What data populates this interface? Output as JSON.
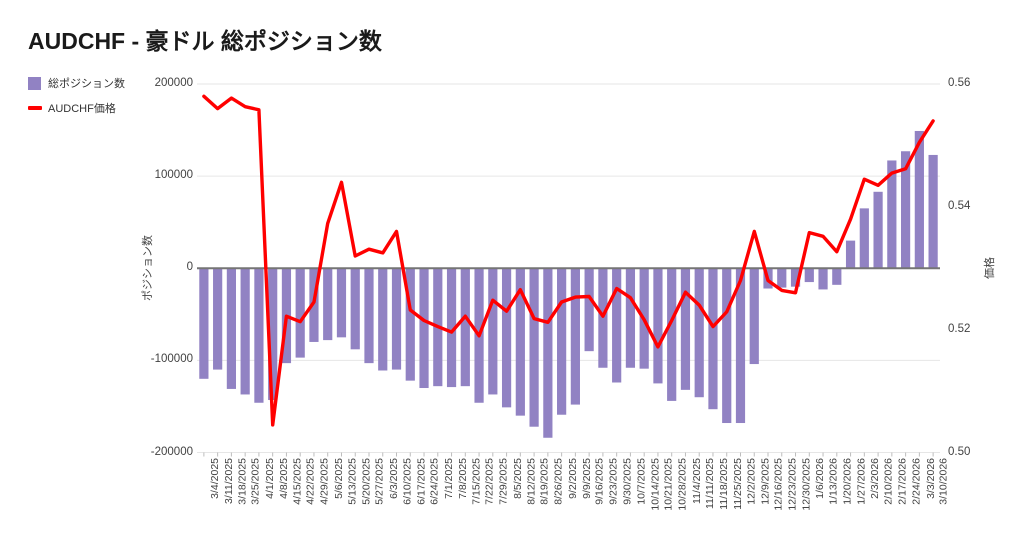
{
  "header": {
    "title": "AUDCHF - 豪ドル 総ポジション数"
  },
  "legend": {
    "items": [
      {
        "label": "総ポジション数",
        "color": "#9182c3",
        "type": "square"
      },
      {
        "label": "AUDCHF価格",
        "color": "#ff0000",
        "type": "line"
      }
    ]
  },
  "axes": {
    "left": {
      "title": "ポジション数",
      "ticks": [
        "200000",
        "100000",
        "0",
        "-100000",
        "-200000"
      ]
    },
    "right": {
      "title": "価格",
      "ticks": [
        "0.56",
        "0.54",
        "0.52",
        "0.50"
      ]
    }
  },
  "colors": {
    "bar": "#9182c3",
    "line": "#ff0000",
    "grid": "#e6e6e6",
    "zero_line": "#757575",
    "tick_stub": "#bdbdbd"
  },
  "chart_data": {
    "type": "bar+line dual-axis combo",
    "title": "AUDCHF - 豪ドル 総ポジション数",
    "categories": [
      "3/4/2025",
      "3/11/2025",
      "3/18/2025",
      "3/25/2025",
      "4/1/2025",
      "4/8/2025",
      "4/15/2025",
      "4/22/2025",
      "4/29/2025",
      "5/6/2025",
      "5/13/2025",
      "5/20/2025",
      "5/27/2025",
      "6/3/2025",
      "6/10/2025",
      "6/17/2025",
      "6/24/2025",
      "7/1/2025",
      "7/8/2025",
      "7/15/2025",
      "7/22/2025",
      "7/29/2025",
      "8/5/2025",
      "8/12/2025",
      "8/19/2025",
      "8/26/2025",
      "9/2/2025",
      "9/9/2025",
      "9/16/2025",
      "9/23/2025",
      "9/30/2025",
      "10/7/2025",
      "10/14/2025",
      "10/21/2025",
      "10/28/2025",
      "11/4/2025",
      "11/11/2025",
      "11/18/2025",
      "11/25/2025",
      "12/2/2025",
      "12/9/2025",
      "12/16/2025",
      "12/23/2025",
      "12/30/2025",
      "1/6/2026",
      "1/13/2026",
      "1/20/2026",
      "1/27/2026",
      "2/3/2026",
      "2/10/2026",
      "2/17/2026",
      "2/24/2026",
      "3/3/2026",
      "3/10/2026"
    ],
    "series": [
      {
        "name": "総ポジション数",
        "type": "bar",
        "axis": "left",
        "color": "#9182c3",
        "values": [
          -120000,
          -110000,
          -131000,
          -137000,
          -146000,
          -143000,
          -103000,
          -97000,
          -80000,
          -78000,
          -75000,
          -88000,
          -103000,
          -111000,
          -110000,
          -122000,
          -130000,
          -128000,
          -129000,
          -128000,
          -146000,
          -137000,
          -151000,
          -160000,
          -172000,
          -184000,
          -159000,
          -148000,
          -90000,
          -108000,
          -124000,
          -108000,
          -109000,
          -125000,
          -144000,
          -132000,
          -140000,
          -153000,
          -168000,
          -168000,
          -104000,
          -22000,
          -21000,
          -20000,
          -15000,
          -23000,
          -18000,
          30000,
          65000,
          83000,
          117000,
          127000,
          149000,
          123000
        ]
      },
      {
        "name": "AUDCHF価格",
        "type": "line",
        "axis": "right",
        "color": "#ff0000",
        "values": [
          0.558,
          0.556,
          0.5577,
          0.5563,
          0.5558,
          0.5045,
          0.5222,
          0.5213,
          0.5245,
          0.5373,
          0.544,
          0.532,
          0.5331,
          0.5325,
          0.536,
          0.5232,
          0.5215,
          0.5205,
          0.5196,
          0.5222,
          0.519,
          0.5248,
          0.523,
          0.5265,
          0.5218,
          0.5212,
          0.5245,
          0.5253,
          0.5254,
          0.5222,
          0.5267,
          0.5252,
          0.5216,
          0.5172,
          0.5215,
          0.5261,
          0.524,
          0.5205,
          0.5229,
          0.528,
          0.536,
          0.528,
          0.5264,
          0.526,
          0.5358,
          0.5352,
          0.5327,
          0.538,
          0.5445,
          0.5435,
          0.5455,
          0.5462,
          0.5505,
          0.554
        ]
      }
    ],
    "ylabel_left": "ポジション数",
    "ylabel_right": "価格",
    "ylim_left": [
      -200000,
      200000
    ],
    "ylim_right": [
      0.5,
      0.56
    ],
    "grid": "horizontal gridlines for left axis only, shared top and bottom border, dark zero baseline",
    "legend_position": "top-left, stacked vertically"
  }
}
